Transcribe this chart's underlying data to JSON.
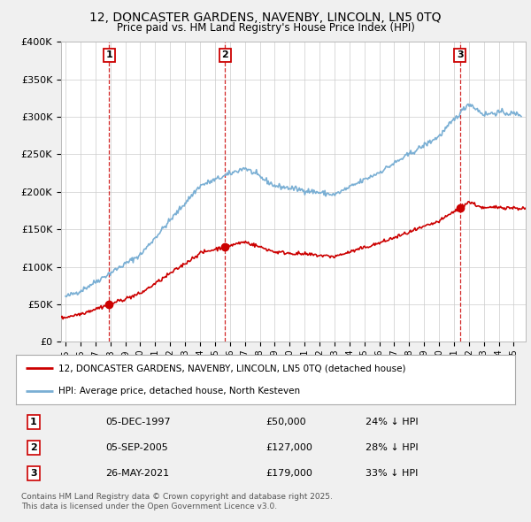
{
  "title": "12, DONCASTER GARDENS, NAVENBY, LINCOLN, LN5 0TQ",
  "subtitle": "Price paid vs. HM Land Registry's House Price Index (HPI)",
  "background_color": "#f0f0f0",
  "plot_bg_color": "#ffffff",
  "sale_dates": [
    1997.92,
    2005.67,
    2021.4
  ],
  "sale_prices": [
    50000,
    127000,
    179000
  ],
  "sale_labels": [
    "1",
    "2",
    "3"
  ],
  "hpi_line_color": "#7aafd4",
  "price_line_color": "#cc0000",
  "legend_entries": [
    "12, DONCASTER GARDENS, NAVENBY, LINCOLN, LN5 0TQ (detached house)",
    "HPI: Average price, detached house, North Kesteven"
  ],
  "table_rows": [
    [
      "1",
      "05-DEC-1997",
      "£50,000",
      "24% ↓ HPI"
    ],
    [
      "2",
      "05-SEP-2005",
      "£127,000",
      "28% ↓ HPI"
    ],
    [
      "3",
      "26-MAY-2021",
      "£179,000",
      "33% ↓ HPI"
    ]
  ],
  "footer": "Contains HM Land Registry data © Crown copyright and database right 2025.\nThis data is licensed under the Open Government Licence v3.0.",
  "ylim": [
    0,
    400000
  ],
  "yticks": [
    0,
    50000,
    100000,
    150000,
    200000,
    250000,
    300000,
    350000,
    400000
  ],
  "xlim_start": 1994.7,
  "xlim_end": 2025.8
}
